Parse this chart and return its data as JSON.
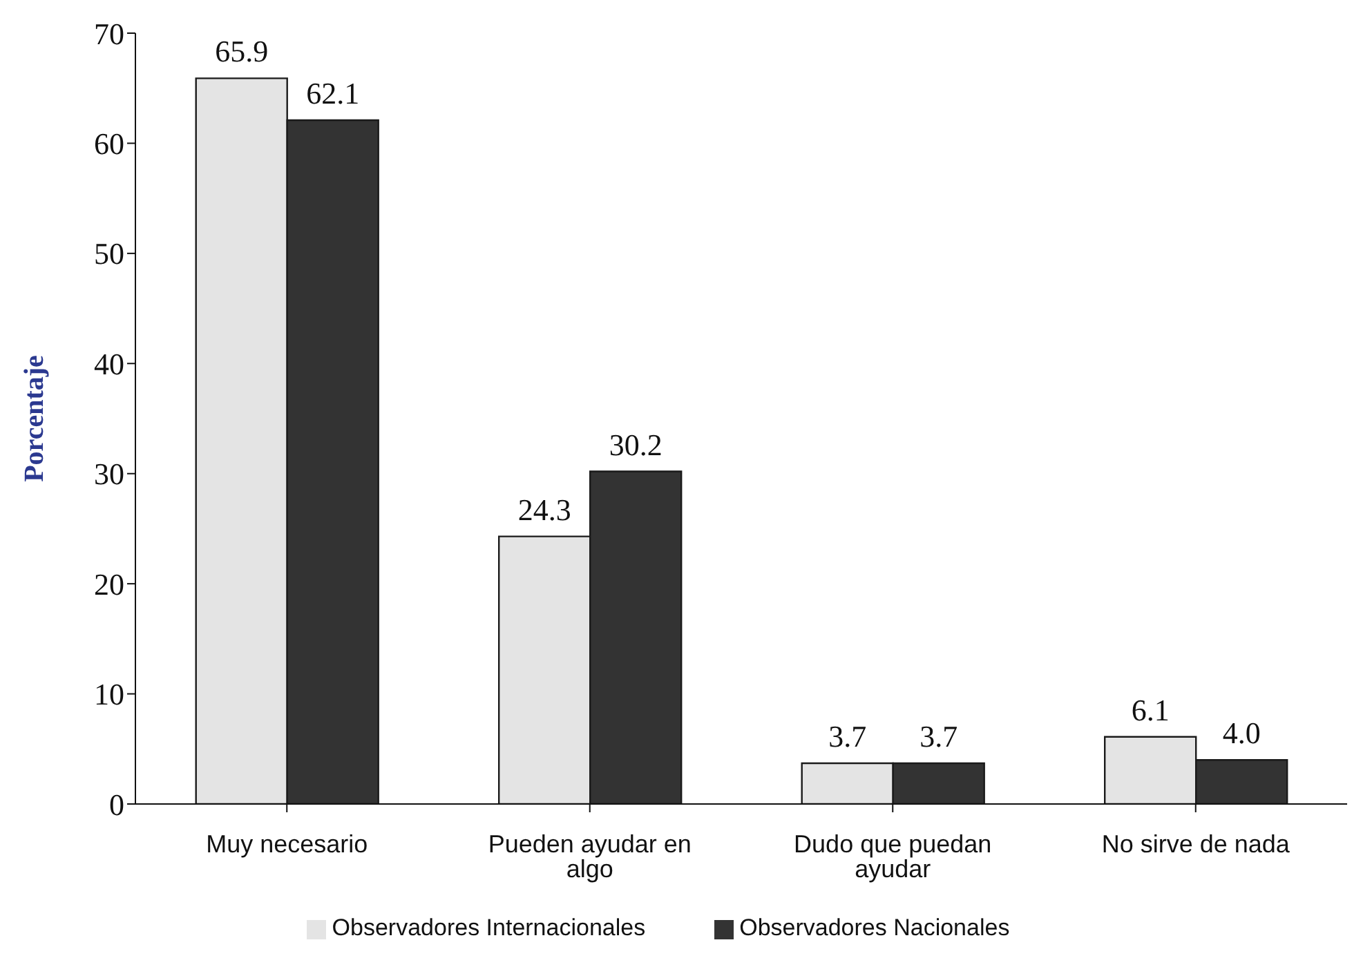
{
  "chart_data": {
    "type": "bar",
    "ylabel": "Porcentaje",
    "categories": [
      "Muy necesario",
      "Pueden ayudar en algo",
      "Dudo que puedan ayudar",
      "No sirve de nada"
    ],
    "series": [
      {
        "name": "Observadores Internacionales",
        "color": "#e4e4e4",
        "values": [
          65.9,
          24.3,
          3.7,
          6.1
        ],
        "value_labels": [
          "65.9",
          "24.3",
          "3.7",
          "6.1"
        ]
      },
      {
        "name": "Observadores Nacionales",
        "color": "#333333",
        "values": [
          62.1,
          30.2,
          3.7,
          4.0
        ],
        "value_labels": [
          "62.1",
          "30.2",
          "3.7",
          "4.0"
        ]
      }
    ],
    "ylim": [
      0,
      70
    ],
    "yticks": [
      0,
      10,
      20,
      30,
      40,
      50,
      60,
      70
    ],
    "grid": false,
    "legend": "bottom"
  }
}
